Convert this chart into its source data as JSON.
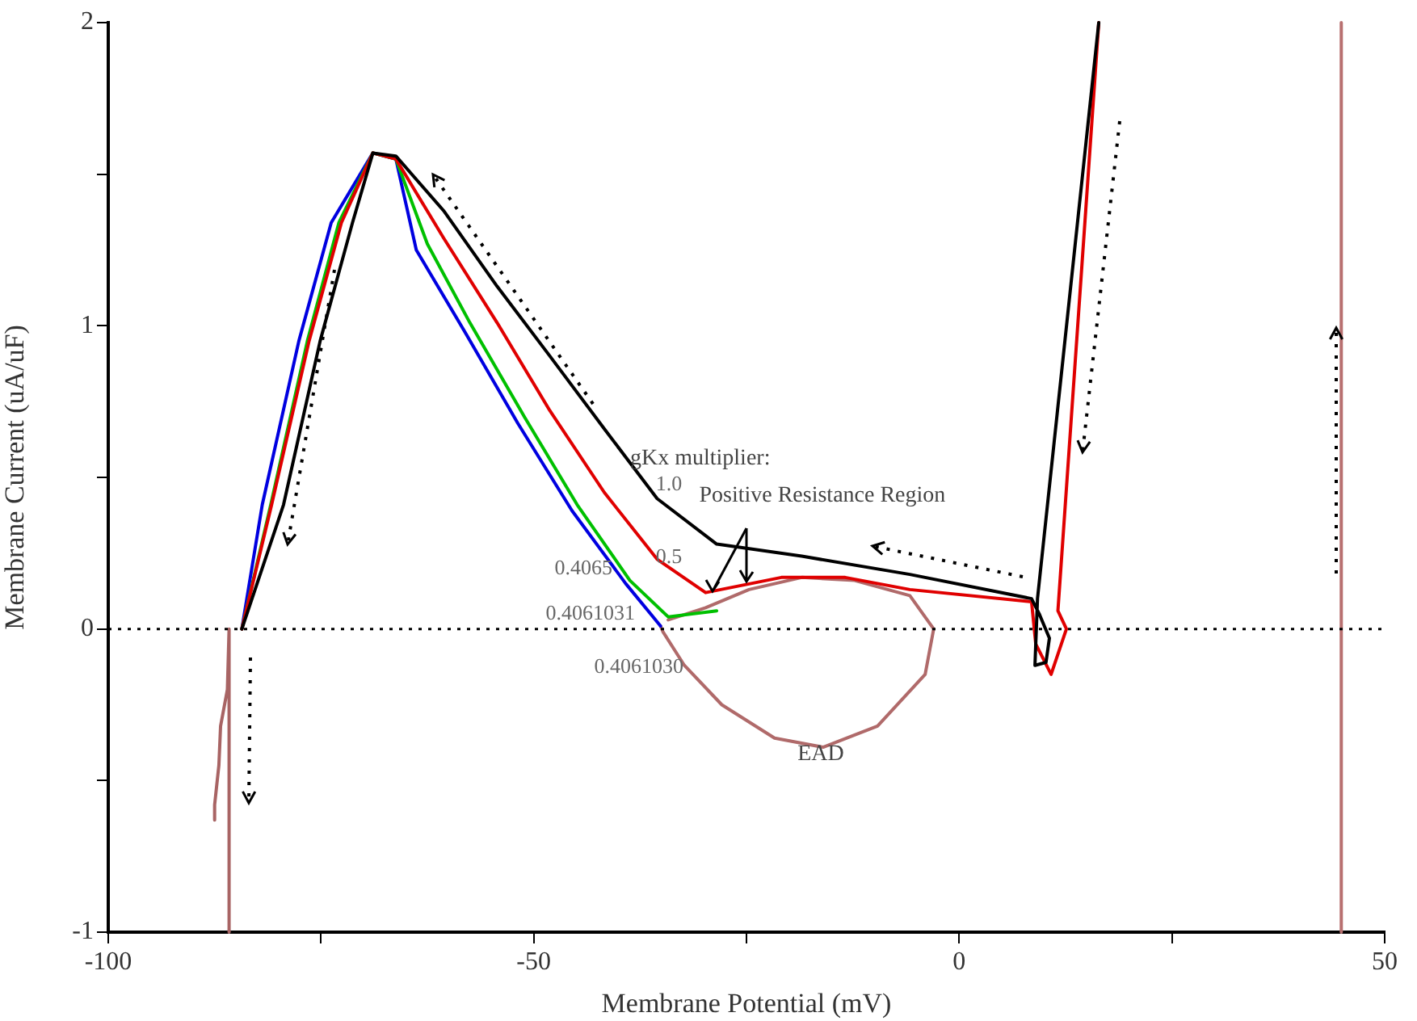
{
  "chart_data": {
    "type": "line",
    "xlabel": "Membrane Potential (mV)",
    "ylabel": "Membrane Current (uA/uF)",
    "xlim": [
      -100,
      50
    ],
    "xticks": [
      -100,
      {
        "value": -75,
        "label": null
      },
      -50,
      {
        "value": -25,
        "label": null
      },
      0,
      {
        "value": 25,
        "label": null
      },
      50
    ],
    "ylim": [
      -1,
      2
    ],
    "yticks": [
      -1,
      {
        "value": -0.5,
        "label": null
      },
      0,
      {
        "value": 0.5,
        "label": null
      },
      1,
      {
        "value": 1.5,
        "label": null
      },
      2
    ],
    "grid": false,
    "legend": false,
    "marker": "none",
    "line_style": "solid",
    "ref_lines": [
      {
        "axis": "y",
        "value": 0,
        "color": "#000000",
        "line_style": "dotted"
      }
    ],
    "annotations": [
      "gKx multiplier:",
      {
        "text": "Positive Resistance Region",
        "x": -29.8,
        "y": 0.12
      },
      "EAD"
    ],
    "series": [
      {
        "name": "1.0",
        "color": "#000000",
        "x": [
          16.4,
          9.2,
          8.9,
          10.2,
          10.6,
          9.4,
          8.5,
          -5.8,
          -18.5,
          -28.5,
          -35.5,
          -41.7,
          -48.1,
          -54.3,
          -60.6,
          -66.2,
          -68.9,
          -71.3,
          -75.1,
          -79.4,
          -84.3
        ],
        "values": [
          2.0,
          0.1,
          -0.12,
          -0.11,
          -0.03,
          0.05,
          0.1,
          0.18,
          0.24,
          0.28,
          0.43,
          0.66,
          0.9,
          1.13,
          1.38,
          1.56,
          1.57,
          1.34,
          0.95,
          0.41,
          0
        ]
      },
      {
        "name": "0.5",
        "color": "#e00000",
        "x": [
          16.4,
          11.6,
          12.6,
          10.8,
          9.0,
          8.5,
          -5.8,
          -13.4,
          -20.9,
          -29.8,
          -35.5,
          -41.7,
          -48.1,
          -54.3,
          -60.6,
          -66.2,
          -68.9,
          -72.6,
          -76.4,
          -80.8,
          -84.3
        ],
        "values": [
          2.0,
          0.06,
          0,
          -0.15,
          -0.05,
          0.09,
          0.13,
          0.17,
          0.17,
          0.12,
          0.23,
          0.45,
          0.72,
          1.01,
          1.29,
          1.55,
          1.57,
          1.34,
          0.95,
          0.41,
          0
        ]
      },
      {
        "name": "0.4065",
        "color": "#00c000",
        "x": [
          -28.5,
          -34.2,
          -38.7,
          -44.9,
          -51.1,
          -57.5,
          -62.5,
          -66.2,
          -68.9,
          -72.9,
          -76.6,
          -80.9,
          -84.3
        ],
        "values": [
          0.06,
          0.04,
          0.16,
          0.41,
          0.7,
          1.01,
          1.27,
          1.55,
          1.57,
          1.34,
          0.95,
          0.41,
          0
        ]
      },
      {
        "name": "0.4061031",
        "color": "#0000e0",
        "x": [
          -35.1,
          -39.2,
          -45.5,
          -51.9,
          -58.1,
          -63.8,
          -66.2,
          -68.9,
          -73.8,
          -77.6,
          -81.9,
          -84.3
        ],
        "values": [
          0.01,
          0.15,
          0.39,
          0.68,
          0.98,
          1.25,
          1.55,
          1.57,
          1.34,
          0.95,
          0.41,
          0
        ]
      },
      {
        "name": "0.4061030",
        "color": "#b06a6a",
        "x": [
          -35.1,
          -34.8,
          -32.3,
          -27.9,
          -21.7,
          -16.0,
          -9.6,
          -4.0,
          -3.0,
          -5.8,
          -12.3,
          -18.5,
          -24.7,
          -29.8,
          -34.2
        ],
        "values": [
          0.01,
          -0.01,
          -0.12,
          -0.25,
          -0.36,
          -0.39,
          -0.32,
          -0.15,
          0,
          0.11,
          0.16,
          0.17,
          0.13,
          0.07,
          0.03
        ]
      },
      {
        "color": "#a86464",
        "x": [
          -87.5,
          -87.5,
          -87.0,
          -86.8,
          -86.0,
          -85.8,
          -85.8
        ],
        "values": [
          -0.63,
          -0.58,
          -0.45,
          -0.32,
          -0.2,
          0,
          -1
        ]
      },
      {
        "color": "#b87070",
        "x": [
          44.9,
          44.9,
          44.9,
          44.9
        ],
        "values": [
          -1,
          0,
          1,
          2
        ]
      }
    ]
  }
}
